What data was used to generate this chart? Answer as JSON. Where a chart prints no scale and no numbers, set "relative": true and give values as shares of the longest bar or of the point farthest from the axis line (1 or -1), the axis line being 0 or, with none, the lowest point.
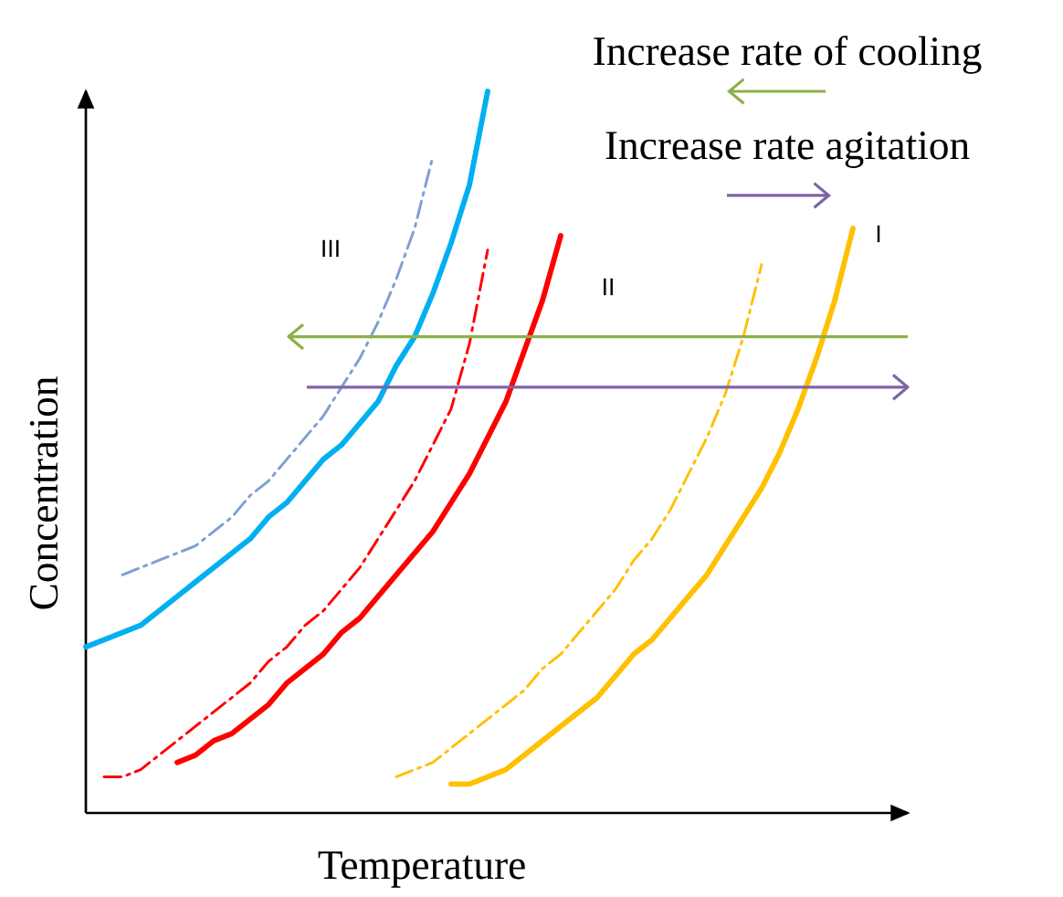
{
  "chart_data": {
    "type": "line",
    "relative": true,
    "xlabel": "Temperature",
    "ylabel": "Concentration",
    "annotations": [
      "Increase rate of cooling",
      "Increase rate agitation",
      "III",
      "II",
      "I"
    ],
    "categories": [
      null,
      null,
      null,
      null,
      null,
      null,
      null,
      null,
      null,
      null,
      null,
      null,
      null,
      null,
      null,
      null,
      null,
      null,
      null,
      null,
      null,
      null,
      null,
      null,
      null,
      null,
      null,
      null,
      null,
      null,
      null,
      null,
      null,
      null,
      null,
      null,
      null,
      null,
      null,
      null,
      null,
      null,
      null,
      null,
      null,
      null
    ],
    "series": [
      {
        "color": "#00b0f0",
        "line_style": "solid",
        "values": [
          0.23,
          0.24,
          0.25,
          0.26,
          0.28,
          0.3,
          0.32,
          0.34,
          0.36,
          0.38,
          0.41,
          0.43,
          0.46,
          0.49,
          0.51,
          0.54,
          0.57,
          0.62,
          0.66,
          0.72,
          0.79,
          0.87,
          1.0,
          null,
          null,
          null,
          null,
          null,
          null,
          null,
          null,
          null,
          null,
          null,
          null,
          null,
          null,
          null,
          null,
          null,
          null,
          null,
          null,
          null,
          null,
          null
        ]
      },
      {
        "color": "#7f9fd3",
        "line_style": "dashed",
        "values": [
          null,
          null,
          0.33,
          0.34,
          0.35,
          0.36,
          0.37,
          0.39,
          0.41,
          0.44,
          0.46,
          0.49,
          0.52,
          0.55,
          0.59,
          0.63,
          0.68,
          0.74,
          0.81,
          0.91,
          null,
          null,
          null,
          null,
          null,
          null,
          null,
          null,
          null,
          null,
          null,
          null,
          null,
          null,
          null,
          null,
          null,
          null,
          null,
          null,
          null,
          null,
          null,
          null,
          null,
          null
        ]
      },
      {
        "color": "#ff0000",
        "line_style": "solid",
        "values": [
          null,
          null,
          null,
          null,
          null,
          0.07,
          0.08,
          0.1,
          0.11,
          0.13,
          0.15,
          0.18,
          0.2,
          0.22,
          0.25,
          0.27,
          0.3,
          0.33,
          0.36,
          0.39,
          0.43,
          0.47,
          0.52,
          0.57,
          0.64,
          0.71,
          0.8,
          null,
          null,
          null,
          null,
          null,
          null,
          null,
          null,
          null,
          null,
          null,
          null,
          null,
          null,
          null,
          null,
          null,
          null,
          null
        ]
      },
      {
        "color": "#ff0000",
        "line_style": "dashed",
        "values": [
          null,
          0.05,
          0.05,
          0.06,
          0.08,
          0.1,
          0.12,
          0.14,
          0.16,
          0.18,
          0.21,
          0.23,
          0.26,
          0.28,
          0.31,
          0.34,
          0.38,
          0.42,
          0.46,
          0.51,
          0.56,
          0.65,
          0.78,
          null,
          null,
          null,
          null,
          null,
          null,
          null,
          null,
          null,
          null,
          null,
          null,
          null,
          null,
          null,
          null,
          null,
          null,
          null,
          null,
          null,
          null,
          null
        ]
      },
      {
        "color": "#ffc000",
        "line_style": "solid",
        "values": [
          null,
          null,
          null,
          null,
          null,
          null,
          null,
          null,
          null,
          null,
          null,
          null,
          null,
          null,
          null,
          null,
          null,
          null,
          null,
          null,
          0.04,
          0.04,
          0.05,
          0.06,
          0.08,
          0.1,
          0.12,
          0.14,
          0.16,
          0.19,
          0.22,
          0.24,
          0.27,
          0.3,
          0.33,
          0.37,
          0.41,
          0.45,
          0.5,
          0.56,
          0.63,
          0.71,
          0.81,
          null,
          null,
          null
        ]
      },
      {
        "color": "#ffc000",
        "line_style": "dashed",
        "values": [
          null,
          null,
          null,
          null,
          null,
          null,
          null,
          null,
          null,
          null,
          null,
          null,
          null,
          null,
          null,
          null,
          null,
          0.05,
          0.06,
          0.07,
          0.09,
          0.11,
          0.13,
          0.15,
          0.17,
          0.2,
          0.22,
          0.25,
          0.28,
          0.31,
          0.35,
          0.38,
          0.42,
          0.47,
          0.52,
          0.58,
          0.66,
          0.76,
          null,
          null,
          null,
          null,
          null,
          null,
          null,
          null
        ]
      }
    ],
    "ref_lines": [
      {
        "axis": "y",
        "value": 0.66,
        "color": "#8db04a"
      },
      {
        "axis": "y",
        "value": 0.59,
        "color": "#7f63a8"
      }
    ]
  }
}
